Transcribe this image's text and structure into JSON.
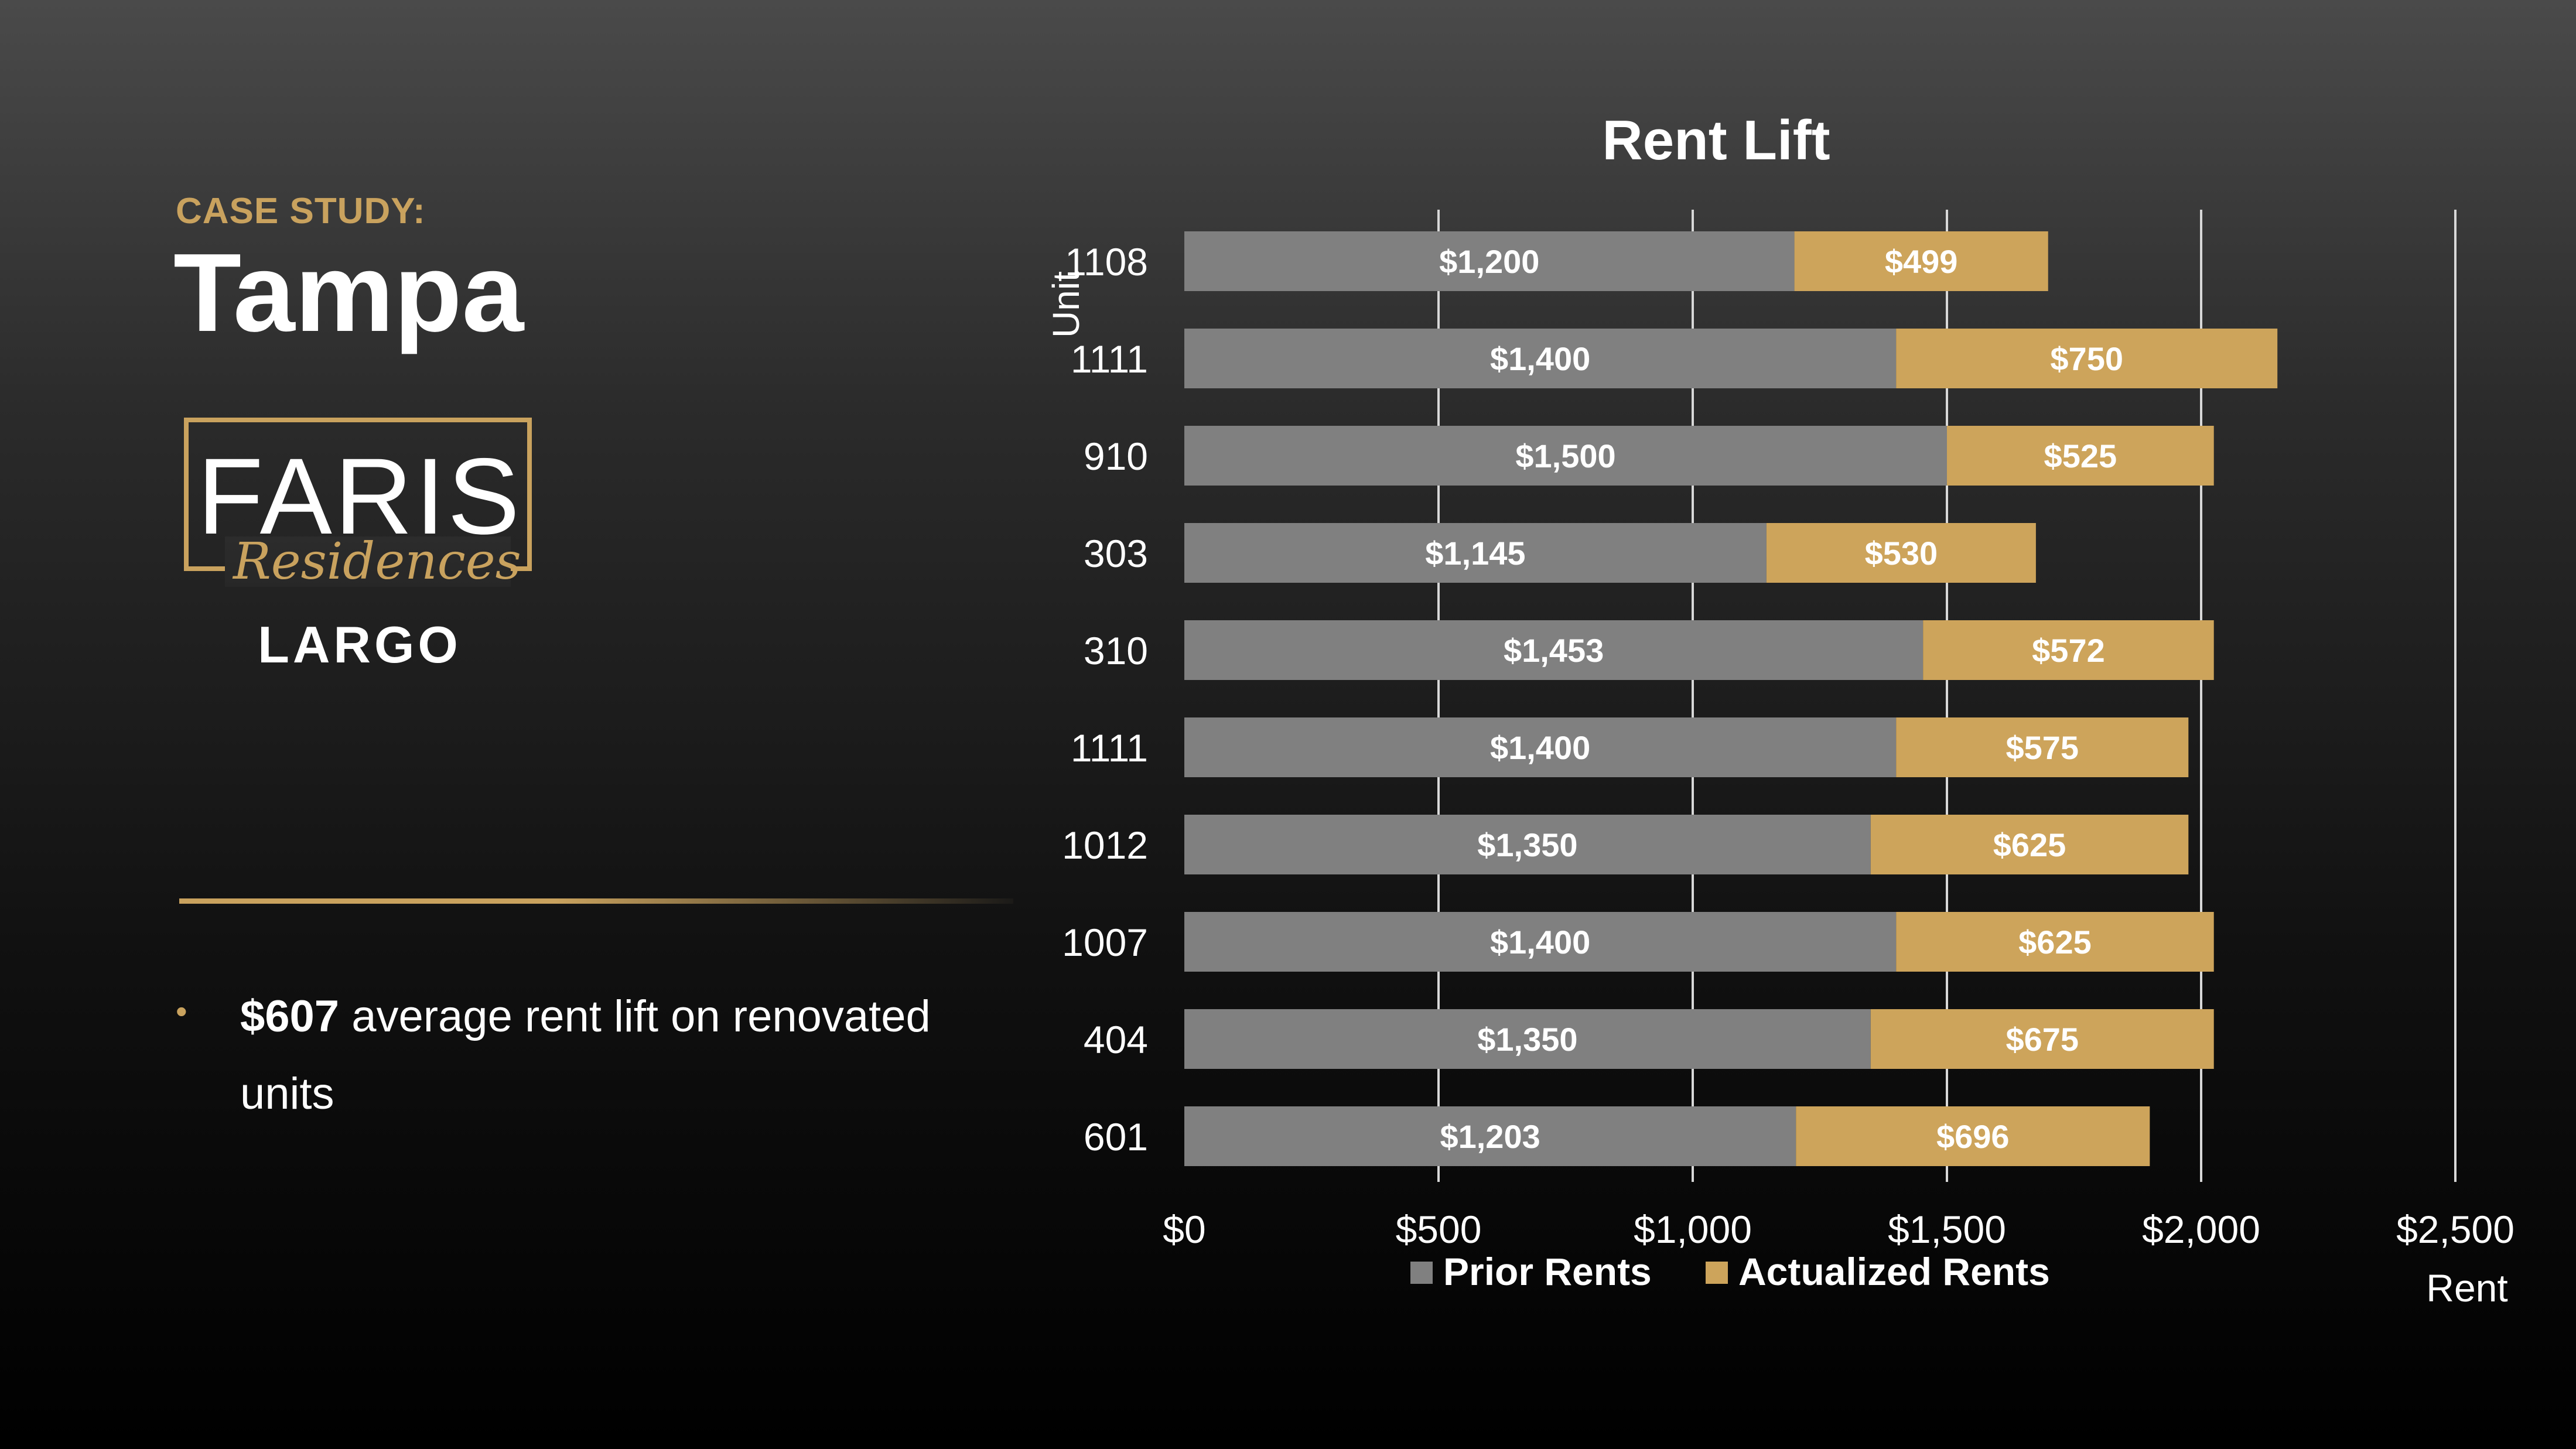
{
  "colors": {
    "gold": "#c9a25e",
    "prior": "#808080",
    "actualized": "#cda45b",
    "grid": "#d8d8d8",
    "text": "#ffffff"
  },
  "case_study": {
    "eyebrow": "CASE STUDY:",
    "city": "Tampa"
  },
  "logo": {
    "wordmark": "FARIS",
    "script": "Residences",
    "location": "LARGO"
  },
  "highlight": {
    "bullet_icon": "bullet-dot",
    "value": "$607",
    "text": " average rent lift on renovated units"
  },
  "chart_data": {
    "type": "bar",
    "orientation": "horizontal",
    "stacked": true,
    "title": "Rent Lift",
    "xlabel": "Rent",
    "ylabel": "Unit",
    "xlim": [
      0,
      2500
    ],
    "x_ticks": [
      "$0",
      "$500",
      "$1,000",
      "$1,500",
      "$2,000",
      "$2,500"
    ],
    "x_tick_values": [
      0,
      500,
      1000,
      1500,
      2000,
      2500
    ],
    "grid": "vertical",
    "legend_position": "bottom",
    "categories": [
      "1108",
      "1111",
      "910",
      "303",
      "310",
      "1111",
      "1012",
      "1007",
      "404",
      "601"
    ],
    "series": [
      {
        "name": "Prior Rents",
        "color": "#808080",
        "values": [
          1200,
          1400,
          1500,
          1145,
          1453,
          1400,
          1350,
          1400,
          1350,
          1203
        ],
        "labels": [
          "$1,200",
          "$1,400",
          "$1,500",
          "$1,145",
          "$1,453",
          "$1,400",
          "$1,350",
          "$1,400",
          "$1,350",
          "$1,203"
        ]
      },
      {
        "name": "Actualized Rents",
        "color": "#cda45b",
        "values": [
          499,
          750,
          525,
          530,
          572,
          575,
          625,
          625,
          675,
          696
        ],
        "labels": [
          "$499",
          "$750",
          "$525",
          "$530",
          "$572",
          "$575",
          "$625",
          "$625",
          "$675",
          "$696"
        ]
      }
    ]
  }
}
